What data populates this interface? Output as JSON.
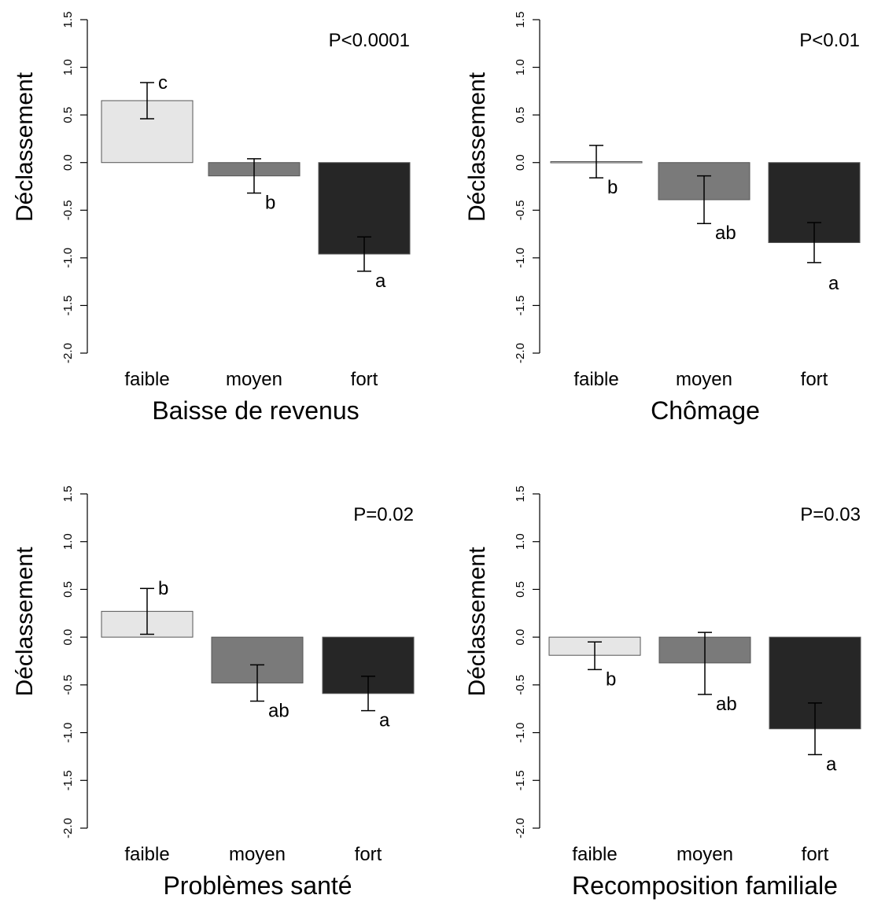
{
  "figure": {
    "colors": {
      "faible": "#e6e6e6",
      "moyen": "#7a7a7a",
      "fort": "#262626",
      "border": "#555555",
      "ink": "#000000"
    }
  },
  "chart_data": [
    {
      "type": "bar",
      "title": "",
      "xlabel": "Baisse de revenus",
      "ylabel": "Déclassement",
      "pvalue": "P<0.0001",
      "ylim": [
        -2.0,
        1.5
      ],
      "yticks": [
        "1.5",
        "1.0",
        "0.5",
        "0.0",
        "-0.5",
        "-1.0",
        "-1.5",
        "-2.0"
      ],
      "categories": [
        "faible",
        "moyen",
        "fort"
      ],
      "values": [
        0.65,
        -0.14,
        -0.96
      ],
      "error_low": [
        0.46,
        -0.32,
        -1.14
      ],
      "error_high": [
        0.84,
        0.04,
        -0.78
      ],
      "letters": [
        "c",
        "b",
        "a"
      ],
      "grid": false
    },
    {
      "type": "bar",
      "title": "",
      "xlabel": "Chômage",
      "ylabel": "Déclassement",
      "pvalue": "P<0.01",
      "ylim": [
        -2.0,
        1.5
      ],
      "yticks": [
        "1.5",
        "1.0",
        "0.5",
        "0.0",
        "-0.5",
        "-1.0",
        "-1.5",
        "-2.0"
      ],
      "categories": [
        "faible",
        "moyen",
        "fort"
      ],
      "values": [
        0.01,
        -0.39,
        -0.84
      ],
      "error_low": [
        -0.16,
        -0.64,
        -1.05
      ],
      "error_high": [
        0.18,
        -0.14,
        -0.63
      ],
      "letters": [
        "b",
        "ab",
        "a"
      ],
      "grid": false
    },
    {
      "type": "bar",
      "title": "",
      "xlabel": "Problèmes santé",
      "ylabel": "Déclassement",
      "pvalue": "P=0.02",
      "ylim": [
        -2.0,
        1.5
      ],
      "yticks": [
        "1.5",
        "1.0",
        "0.5",
        "0.0",
        "-0.5",
        "-1.0",
        "-1.5",
        "-2.0"
      ],
      "categories": [
        "faible",
        "moyen",
        "fort"
      ],
      "values": [
        0.27,
        -0.48,
        -0.59
      ],
      "error_low": [
        0.03,
        -0.67,
        -0.77
      ],
      "error_high": [
        0.51,
        -0.29,
        -0.41
      ],
      "letters": [
        "b",
        "ab",
        "a"
      ],
      "grid": false
    },
    {
      "type": "bar",
      "title": "",
      "xlabel": "Recomposition familiale",
      "ylabel": "Déclassement",
      "pvalue": "P=0.03",
      "ylim": [
        -2.0,
        1.5
      ],
      "yticks": [
        "1.5",
        "1.0",
        "0.5",
        "0.0",
        "-0.5",
        "-1.0",
        "-1.5",
        "-2.0"
      ],
      "categories": [
        "faible",
        "moyen",
        "fort"
      ],
      "values": [
        -0.19,
        -0.27,
        -0.96
      ],
      "error_low": [
        -0.34,
        -0.6,
        -1.23
      ],
      "error_high": [
        -0.05,
        0.05,
        -0.69
      ],
      "letters": [
        "b",
        "ab",
        "a"
      ],
      "grid": false
    }
  ]
}
